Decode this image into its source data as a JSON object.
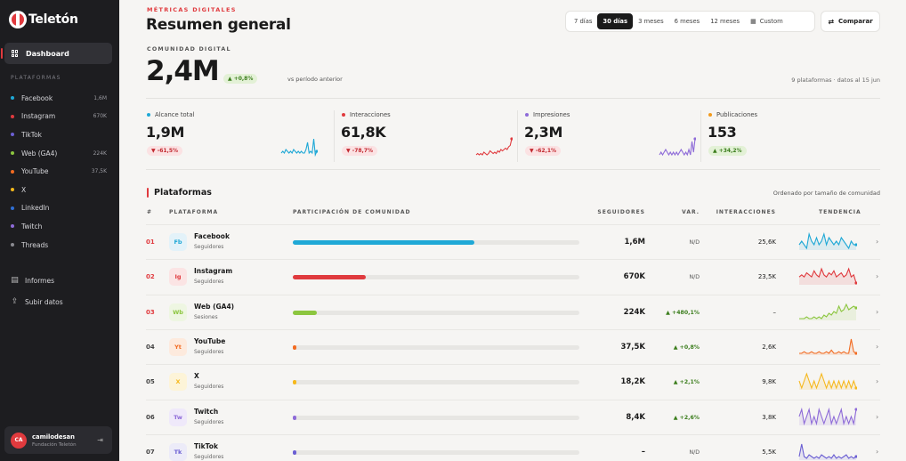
{
  "sidebar": {
    "logo_text": "Teletón",
    "dashboard_label": "Dashboard",
    "section_label": "PLATAFORMAS",
    "platforms": [
      {
        "name": "Facebook",
        "count": "1,6M",
        "color": "#1fa8d6"
      },
      {
        "name": "Instagram",
        "count": "670K",
        "color": "#e03a3e"
      },
      {
        "name": "TikTok",
        "count": "",
        "color": "#6b5fd3"
      },
      {
        "name": "Web (GA4)",
        "count": "224K",
        "color": "#8cc63f"
      },
      {
        "name": "YouTube",
        "count": "37,5K",
        "color": "#f26b21"
      },
      {
        "name": "X",
        "count": "",
        "color": "#f6b81c"
      },
      {
        "name": "LinkedIn",
        "count": "",
        "color": "#2f6fd6"
      },
      {
        "name": "Twitch",
        "count": "",
        "color": "#8e6bd8"
      },
      {
        "name": "Threads",
        "count": "",
        "color": "#8a8a90"
      }
    ],
    "reports_label": "Informes",
    "upload_label": "Subir datos",
    "user": {
      "initials": "CA",
      "name": "camilodesan",
      "org": "Fundación Teletón"
    }
  },
  "header": {
    "kicker": "MÉTRICAS DIGITALES",
    "title": "Resumen general",
    "ranges": [
      "7 días",
      "30 días",
      "3 meses",
      "6 meses",
      "12 meses",
      "Custom"
    ],
    "active_range": "30 días",
    "compare_label": "Comparar"
  },
  "community": {
    "label": "COMUNIDAD DIGITAL",
    "value": "2,4M",
    "delta": "▲ +0,8%",
    "vs": "vs período anterior",
    "meta": "9 plataformas · datos al 15 jun"
  },
  "kpis": [
    {
      "label": "Alcance total",
      "value": "1,9M",
      "delta": "▼ -61,5%",
      "trend": "down",
      "color": "#1fa8d6",
      "spark": [
        4,
        5,
        4,
        6,
        5,
        4,
        5,
        4,
        6,
        5,
        4,
        5,
        4,
        5,
        4,
        4,
        6,
        10,
        4,
        5,
        4,
        12,
        3,
        5
      ]
    },
    {
      "label": "Interacciones",
      "value": "61,8K",
      "delta": "▼ -78,7%",
      "trend": "down",
      "color": "#e03a3e",
      "spark": [
        2,
        3,
        2,
        3,
        2,
        4,
        3,
        2,
        3,
        5,
        4,
        3,
        4,
        3,
        5,
        4,
        6,
        5,
        6,
        7,
        6,
        8,
        9,
        14
      ]
    },
    {
      "label": "Impresiones",
      "value": "2,3M",
      "delta": "▼ -62,1%",
      "trend": "down",
      "color": "#8e6bd8",
      "spark": [
        4,
        5,
        4,
        5,
        6,
        5,
        4,
        5,
        4,
        5,
        4,
        5,
        4,
        5,
        6,
        5,
        4,
        5,
        4,
        6,
        4,
        9,
        5,
        10
      ]
    },
    {
      "label": "Publicaciones",
      "value": "153",
      "delta": "▲ +34,2%",
      "trend": "up",
      "color": "#f29a1c",
      "spark": []
    }
  ],
  "table": {
    "title": "Plataformas",
    "note": "Ordenado por tamaño de comunidad",
    "headers": [
      "#",
      "PLATAFORMA",
      "PARTICIPACIÓN DE COMUNIDAD",
      "SEGUIDORES",
      "VAR.",
      "INTERACCIONES",
      "TENDENCIA"
    ],
    "rows": [
      {
        "num": "01",
        "abbr": "Fb",
        "name": "Facebook",
        "sub": "Seguidores",
        "share": 0.635,
        "followers": "1,6M",
        "var": "N/D",
        "var_up": false,
        "interactions": "25,6K",
        "color": "#1fa8d6",
        "bg": "#e3f2f9",
        "num_color": "#e03a3e",
        "spark": [
          6,
          7,
          6,
          5,
          9,
          7,
          6,
          8,
          6,
          7,
          9,
          6,
          8,
          7,
          6,
          7,
          6,
          8,
          7,
          6,
          5,
          7,
          6,
          6
        ]
      },
      {
        "num": "02",
        "abbr": "Ig",
        "name": "Instagram",
        "sub": "Seguidores",
        "share": 0.255,
        "followers": "670K",
        "var": "N/D",
        "var_up": false,
        "interactions": "23,5K",
        "color": "#e03a3e",
        "bg": "#fbe4e4",
        "num_color": "#e03a3e",
        "spark": [
          5,
          6,
          5,
          7,
          6,
          5,
          8,
          6,
          5,
          9,
          6,
          5,
          7,
          6,
          8,
          5,
          6,
          7,
          5,
          6,
          9,
          5,
          6,
          2
        ]
      },
      {
        "num": "03",
        "abbr": "Wb",
        "name": "Web (GA4)",
        "sub": "Sesiones",
        "share": 0.085,
        "followers": "224K",
        "var": "▲ +480,1%",
        "var_up": true,
        "interactions": "–",
        "color": "#8cc63f",
        "bg": "#eef6e2",
        "num_color": "#e03a3e",
        "spark": [
          2,
          2,
          2,
          3,
          2,
          2,
          3,
          2,
          3,
          2,
          4,
          3,
          5,
          4,
          6,
          5,
          9,
          6,
          7,
          10,
          7,
          8,
          9,
          8
        ]
      },
      {
        "num": "04",
        "abbr": "Yt",
        "name": "YouTube",
        "sub": "Seguidores",
        "share": 0.012,
        "followers": "37,5K",
        "var": "▲ +0,8%",
        "var_up": true,
        "interactions": "2,6K",
        "color": "#f26b21",
        "bg": "#fdeadd",
        "num_color": "#444",
        "spark": [
          2,
          2,
          3,
          2,
          2,
          3,
          2,
          2,
          3,
          2,
          2,
          3,
          2,
          4,
          2,
          2,
          3,
          2,
          3,
          2,
          2,
          11,
          3,
          2
        ]
      },
      {
        "num": "05",
        "abbr": "X",
        "name": "X",
        "sub": "Seguidores",
        "share": 0.007,
        "followers": "18,2K",
        "var": "▲ +2,1%",
        "var_up": true,
        "interactions": "9,8K",
        "color": "#f6b81c",
        "bg": "#fdf4d8",
        "num_color": "#444",
        "spark": [
          7,
          6,
          7,
          8,
          7,
          6,
          7,
          6,
          7,
          8,
          7,
          6,
          7,
          6,
          7,
          6,
          7,
          6,
          7,
          6,
          7,
          6,
          7,
          6
        ]
      },
      {
        "num": "06",
        "abbr": "Tw",
        "name": "Twitch",
        "sub": "Seguidores",
        "share": 0.004,
        "followers": "8,4K",
        "var": "▲ +2,6%",
        "var_up": true,
        "interactions": "3,8K",
        "color": "#8e6bd8",
        "bg": "#efe9fa",
        "num_color": "#444",
        "spark": [
          8,
          9,
          7,
          8,
          9,
          7,
          8,
          7,
          9,
          8,
          7,
          8,
          9,
          7,
          8,
          7,
          8,
          9,
          7,
          8,
          7,
          8,
          7,
          9
        ]
      },
      {
        "num": "07",
        "abbr": "Tk",
        "name": "TikTok",
        "sub": "Seguidores",
        "share": 0.004,
        "followers": "–",
        "var": "N/D",
        "var_up": false,
        "interactions": "5,5K",
        "color": "#6b5fd3",
        "bg": "#ecebf8",
        "num_color": "#444",
        "spark": [
          3,
          10,
          3,
          2,
          4,
          3,
          2,
          3,
          2,
          4,
          3,
          2,
          3,
          2,
          4,
          2,
          3,
          2,
          3,
          4,
          2,
          3,
          2,
          3
        ]
      }
    ]
  }
}
